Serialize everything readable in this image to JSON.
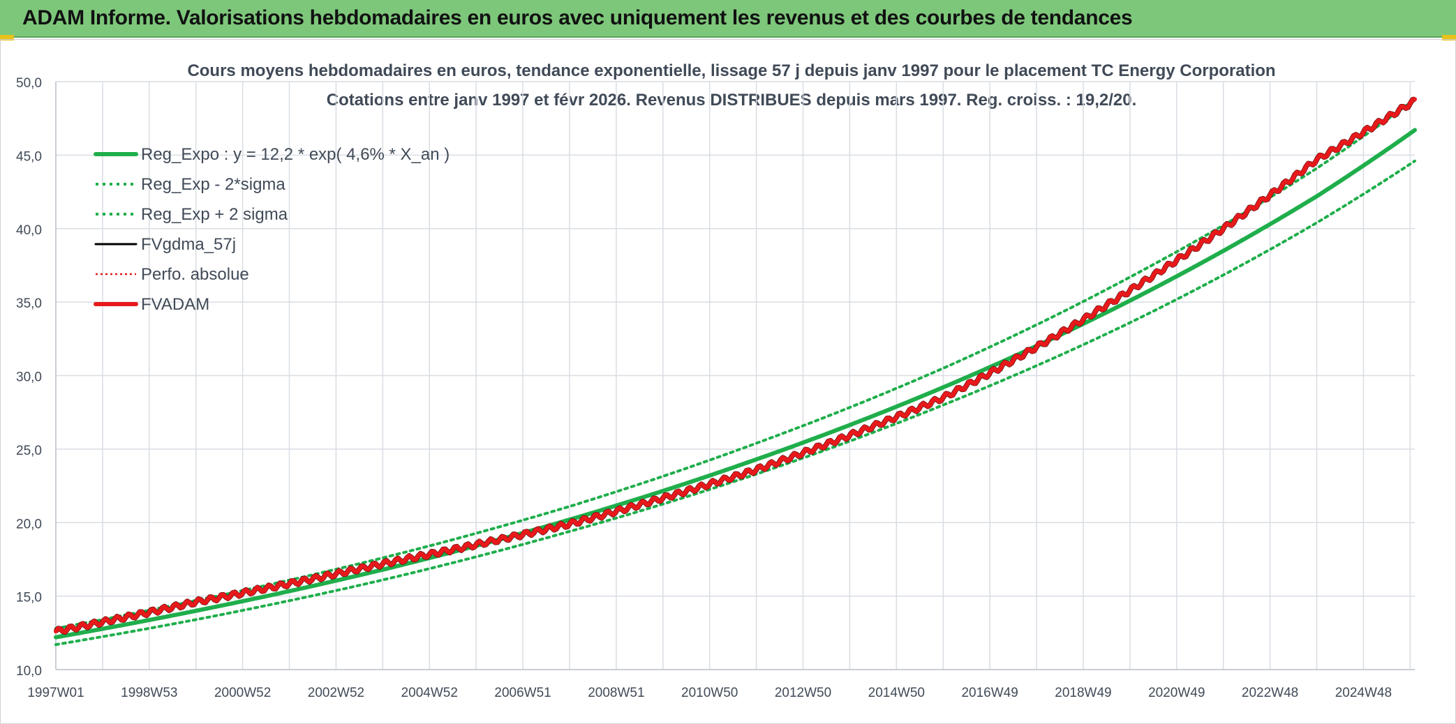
{
  "header": {
    "title": "ADAM Informe. Valorisations hebdomadaires en euros avec uniquement les revenus et des courbes de tendances"
  },
  "chart_data": {
    "type": "line",
    "title": "Cours moyens hebdomadaires en euros, tendance exponentielle, lissage 57 j depuis janv 1997 pour le placement TC Energy Corporation",
    "subtitle": "Cotations entre janv 1997 et févr 2026. Revenus DISTRIBUES depuis mars 1997. Reg. croiss. : 19,2/20.",
    "x_tick_labels": [
      "1997W01",
      "1998W53",
      "2000W52",
      "2002W52",
      "2004W52",
      "2006W51",
      "2008W51",
      "2010W50",
      "2012W50",
      "2014W50",
      "2016W49",
      "2018W49",
      "2020W49",
      "2022W48",
      "2024W48"
    ],
    "y_tick_labels": [
      "10,0",
      "15,0",
      "20,0",
      "25,0",
      "30,0",
      "35,0",
      "40,0",
      "45,0",
      "50,0"
    ],
    "ylim": [
      10,
      50
    ],
    "x_range_years": [
      1997.0,
      2026.1
    ],
    "grid": true,
    "legend_position": "top-left",
    "colors": {
      "green": "#1fae4b",
      "red": "#e8191b",
      "black": "#000000",
      "grid": "#d9dde3",
      "text": "#404a57"
    },
    "series": [
      {
        "name": "Reg_Expo : y = 12,2 * exp( 4,6% *  X_an )",
        "style": "green-solid",
        "x": [
          1997,
          2000,
          2004,
          2008,
          2012,
          2016,
          2020,
          2024,
          2026.1
        ],
        "values": [
          12.2,
          14.0,
          16.8,
          20.2,
          24.3,
          29.2,
          35.1,
          42.2,
          46.7
        ]
      },
      {
        "name": "Reg_Exp - 2*sigma",
        "style": "green-dotted",
        "x": [
          1997,
          2000,
          2004,
          2008,
          2012,
          2016,
          2020,
          2024,
          2026.1
        ],
        "values": [
          11.7,
          13.4,
          16.1,
          19.4,
          23.3,
          28.0,
          33.6,
          40.4,
          44.6
        ]
      },
      {
        "name": "Reg_Exp + 2 sigma",
        "style": "green-dotted",
        "x": [
          1997,
          2000,
          2004,
          2008,
          2012,
          2016,
          2020,
          2024,
          2026.1
        ],
        "values": [
          12.8,
          14.7,
          17.6,
          21.1,
          25.4,
          30.5,
          36.7,
          44.1,
          48.8
        ]
      },
      {
        "name": "FVgdma_57j",
        "style": "black-solid",
        "x": [],
        "values": []
      },
      {
        "name": "Perfo. absolue",
        "style": "red-dotted",
        "x": [
          1997,
          2000,
          2004,
          2008,
          2012,
          2016,
          2020,
          2024,
          2026.1
        ],
        "values": [
          12.6,
          14.6,
          17.2,
          19.9,
          23.6,
          28.5,
          35.8,
          44.7,
          48.7
        ]
      },
      {
        "name": "FVADAM",
        "style": "red-solid",
        "x": [
          1997,
          2000,
          2004,
          2008,
          2012,
          2016,
          2020,
          2024,
          2026.1
        ],
        "values": [
          12.6,
          14.6,
          17.2,
          19.9,
          23.6,
          28.5,
          35.8,
          44.7,
          48.7
        ]
      }
    ]
  }
}
